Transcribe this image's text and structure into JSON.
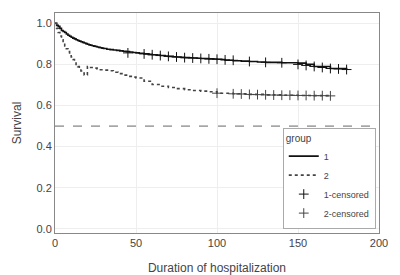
{
  "chart_data": {
    "type": "line",
    "xlabel": "Duration of hospitalization",
    "ylabel": "Survival",
    "xlim": [
      0,
      200
    ],
    "ylim": [
      -0.02,
      1.05
    ],
    "xticks": [
      0,
      50,
      100,
      150,
      200
    ],
    "yticks": [
      {
        "value": 0.0,
        "label": "0.0"
      },
      0.2,
      0.4,
      0.6,
      0.8,
      {
        "value": 1.0,
        "label": "1.0"
      }
    ],
    "grid": true,
    "legend": "lower right",
    "legend_title": "group",
    "median_line_y": 0.5,
    "series": [
      {
        "name": "1",
        "type": "step",
        "color": "#111111",
        "line_style": "solid",
        "x": [
          0,
          1,
          2,
          3,
          4,
          5,
          6,
          7,
          8,
          9,
          10,
          11,
          12,
          13,
          14,
          15,
          16,
          17,
          18,
          19,
          20,
          21,
          22,
          23,
          24,
          25,
          26,
          27,
          28,
          29,
          30,
          32,
          34,
          36,
          38,
          40,
          42,
          44,
          46,
          48,
          50,
          52,
          55,
          58,
          60,
          63,
          65,
          68,
          70,
          73,
          75,
          78,
          80,
          83,
          85,
          88,
          90,
          93,
          95,
          98,
          100,
          103,
          105,
          110,
          115,
          120,
          125,
          130,
          140,
          150,
          155,
          160,
          170,
          180
        ],
        "values": [
          1.0,
          0.99,
          0.985,
          0.975,
          0.965,
          0.96,
          0.955,
          0.948,
          0.942,
          0.937,
          0.932,
          0.928,
          0.924,
          0.92,
          0.916,
          0.913,
          0.91,
          0.907,
          0.904,
          0.901,
          0.898,
          0.895,
          0.893,
          0.891,
          0.889,
          0.887,
          0.885,
          0.883,
          0.881,
          0.879,
          0.877,
          0.874,
          0.872,
          0.87,
          0.868,
          0.866,
          0.864,
          0.862,
          0.86,
          0.858,
          0.856,
          0.854,
          0.851,
          0.849,
          0.847,
          0.845,
          0.843,
          0.841,
          0.839,
          0.837,
          0.836,
          0.834,
          0.833,
          0.832,
          0.831,
          0.83,
          0.829,
          0.828,
          0.827,
          0.826,
          0.825,
          0.824,
          0.82,
          0.818,
          0.816,
          0.814,
          0.812,
          0.81,
          0.808,
          0.806,
          0.8,
          0.79,
          0.78,
          0.775
        ]
      },
      {
        "name": "2",
        "type": "step",
        "color": "#444444",
        "line_style": "dotted",
        "x": [
          0,
          1,
          2,
          3,
          4,
          5,
          6,
          7,
          8,
          9,
          10,
          11,
          12,
          13,
          14,
          15,
          16,
          17,
          18,
          20,
          22,
          24,
          26,
          28,
          30,
          33,
          36,
          39,
          42,
          45,
          48,
          50,
          55,
          60,
          65,
          70,
          75,
          80,
          85,
          90,
          95,
          100,
          110,
          120,
          130,
          140,
          150,
          160,
          170
        ],
        "values": [
          1.0,
          0.975,
          0.955,
          0.938,
          0.92,
          0.905,
          0.89,
          0.876,
          0.862,
          0.849,
          0.836,
          0.824,
          0.812,
          0.8,
          0.789,
          0.778,
          0.768,
          0.758,
          0.749,
          0.79,
          0.785,
          0.782,
          0.778,
          0.774,
          0.772,
          0.769,
          0.762,
          0.755,
          0.748,
          0.742,
          0.738,
          0.734,
          0.718,
          0.702,
          0.694,
          0.688,
          0.682,
          0.677,
          0.673,
          0.67,
          0.667,
          0.66,
          0.657,
          0.654,
          0.652,
          0.65,
          0.649,
          0.648,
          0.647
        ]
      },
      {
        "name": "1-censored",
        "type": "scatter",
        "color": "#111111",
        "marker": "plus",
        "x": [
          45,
          55,
          60,
          65,
          70,
          75,
          80,
          85,
          90,
          95,
          100,
          105,
          110,
          120,
          130,
          140,
          150,
          155,
          160,
          165,
          170,
          175,
          180
        ],
        "values": [
          0.856,
          0.851,
          0.847,
          0.843,
          0.839,
          0.836,
          0.833,
          0.831,
          0.829,
          0.827,
          0.825,
          0.822,
          0.82,
          0.814,
          0.81,
          0.808,
          0.8,
          0.795,
          0.79,
          0.785,
          0.78,
          0.778,
          0.775
        ]
      },
      {
        "name": "2-censored",
        "type": "scatter",
        "color": "#444444",
        "marker": "plus",
        "x": [
          100,
          110,
          115,
          120,
          125,
          130,
          135,
          140,
          145,
          150,
          155,
          160,
          165,
          170
        ],
        "values": [
          0.66,
          0.657,
          0.656,
          0.654,
          0.653,
          0.652,
          0.651,
          0.65,
          0.65,
          0.649,
          0.649,
          0.648,
          0.648,
          0.647
        ]
      }
    ]
  }
}
